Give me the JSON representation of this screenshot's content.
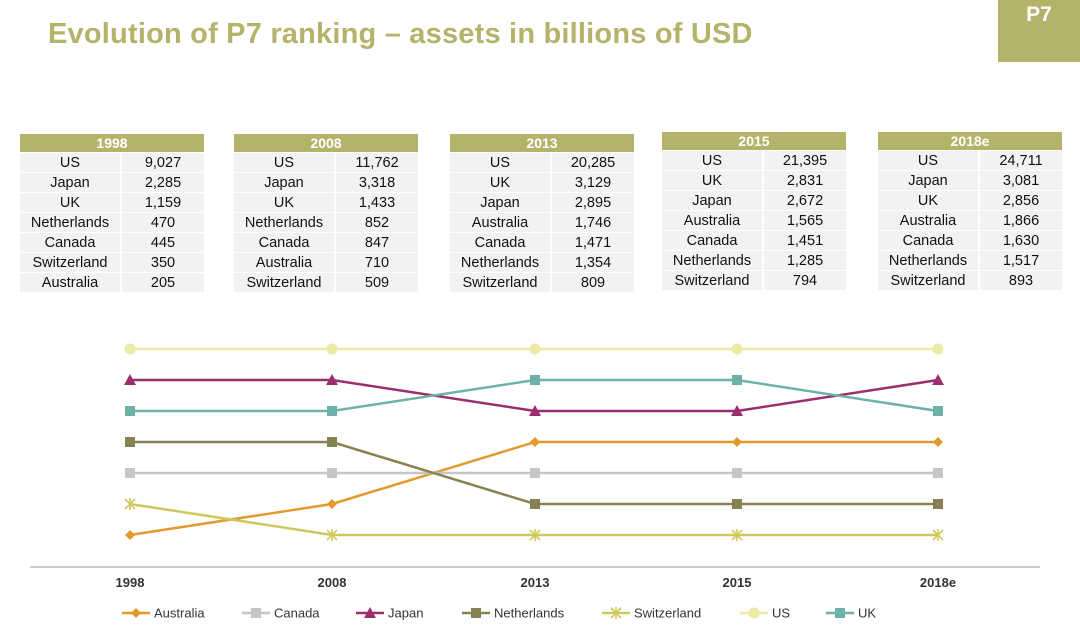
{
  "header": {
    "title": "Evolution of P7 ranking – assets in billions of USD",
    "badge": "P7"
  },
  "tables": [
    {
      "year": "1998",
      "rows": [
        [
          "US",
          "9,027"
        ],
        [
          "Japan",
          "2,285"
        ],
        [
          "UK",
          "1,159"
        ],
        [
          "Netherlands",
          "470"
        ],
        [
          "Canada",
          "445"
        ],
        [
          "Switzerland",
          "350"
        ],
        [
          "Australia",
          "205"
        ]
      ]
    },
    {
      "year": "2008",
      "rows": [
        [
          "US",
          "11,762"
        ],
        [
          "Japan",
          "3,318"
        ],
        [
          "UK",
          "1,433"
        ],
        [
          "Netherlands",
          "852"
        ],
        [
          "Canada",
          "847"
        ],
        [
          "Australia",
          "710"
        ],
        [
          "Switzerland",
          "509"
        ]
      ]
    },
    {
      "year": "2013",
      "rows": [
        [
          "US",
          "20,285"
        ],
        [
          "UK",
          "3,129"
        ],
        [
          "Japan",
          "2,895"
        ],
        [
          "Australia",
          "1,746"
        ],
        [
          "Canada",
          "1,471"
        ],
        [
          "Netherlands",
          "1,354"
        ],
        [
          "Switzerland",
          "809"
        ]
      ]
    },
    {
      "year": "2015",
      "rows": [
        [
          "US",
          "21,395"
        ],
        [
          "UK",
          "2,831"
        ],
        [
          "Japan",
          "2,672"
        ],
        [
          "Australia",
          "1,565"
        ],
        [
          "Canada",
          "1,451"
        ],
        [
          "Netherlands",
          "1,285"
        ],
        [
          "Switzerland",
          "794"
        ]
      ]
    },
    {
      "year": "2018e",
      "rows": [
        [
          "US",
          "24,711"
        ],
        [
          "Japan",
          "3,081"
        ],
        [
          "UK",
          "2,856"
        ],
        [
          "Australia",
          "1,866"
        ],
        [
          "Canada",
          "1,630"
        ],
        [
          "Netherlands",
          "1,517"
        ],
        [
          "Switzerland",
          "893"
        ]
      ]
    }
  ],
  "chart_data": {
    "type": "line",
    "title": "",
    "xlabel": "",
    "ylabel": "",
    "x": [
      "1998",
      "2008",
      "2013",
      "2015",
      "2018e"
    ],
    "ylim": [
      7,
      1
    ],
    "y_inverted": true,
    "grid": false,
    "legend_position": "bottom",
    "series": [
      {
        "name": "Australia",
        "values": [
          7,
          6,
          4,
          4,
          4
        ],
        "color": "#e39a2d",
        "marker": "diamond"
      },
      {
        "name": "Canada",
        "values": [
          5,
          5,
          5,
          5,
          5
        ],
        "color": "#c6c6c6",
        "marker": "square"
      },
      {
        "name": "Japan",
        "values": [
          2,
          2,
          3,
          3,
          2
        ],
        "color": "#9b2f6e",
        "marker": "triangle"
      },
      {
        "name": "Netherlands",
        "values": [
          4,
          4,
          6,
          6,
          6
        ],
        "color": "#868253",
        "marker": "square"
      },
      {
        "name": "Switzerland",
        "values": [
          6,
          7,
          7,
          7,
          7
        ],
        "color": "#cfc95d",
        "marker": "star"
      },
      {
        "name": "US",
        "values": [
          1,
          1,
          1,
          1,
          1
        ],
        "color": "#ede9a6",
        "marker": "circle"
      },
      {
        "name": "UK",
        "values": [
          3,
          3,
          2,
          2,
          3
        ],
        "color": "#6db1ab",
        "marker": "square"
      }
    ]
  }
}
